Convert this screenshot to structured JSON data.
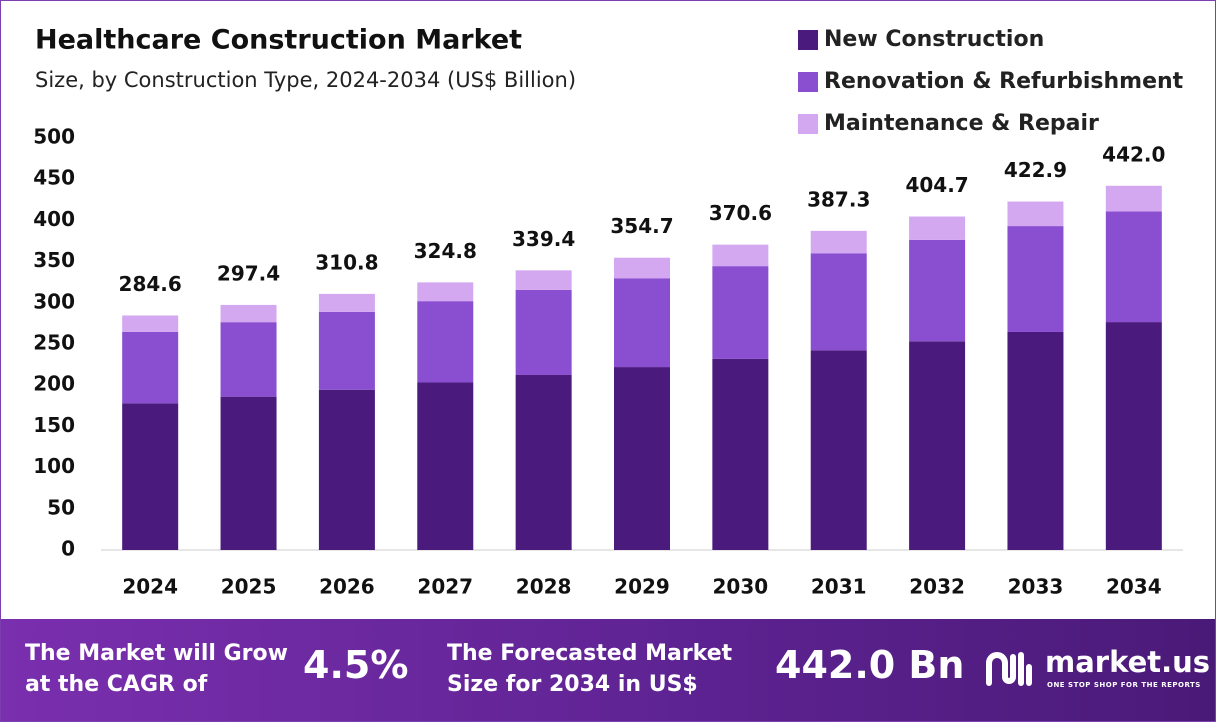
{
  "chart_data": {
    "type": "stacked-bar",
    "title": "Healthcare Construction Market",
    "subtitle": "Size, by Construction Type, 2024-2034 (US$ Billion)",
    "categories": [
      "2024",
      "2025",
      "2026",
      "2027",
      "2028",
      "2029",
      "2030",
      "2031",
      "2032",
      "2033",
      "2034"
    ],
    "series": [
      {
        "name": "New Construction",
        "color": "#4b1a7d",
        "values": [
          178.1,
          186.1,
          194.5,
          203.3,
          212.4,
          222.0,
          231.9,
          242.4,
          253.3,
          264.6,
          276.6
        ]
      },
      {
        "name": "Renovation & Refurbishment",
        "color": "#8a4fd0",
        "values": [
          86.5,
          90.4,
          94.5,
          98.7,
          103.2,
          107.8,
          112.6,
          117.7,
          123.0,
          128.5,
          134.3
        ]
      },
      {
        "name": "Maintenance & Repair",
        "color": "#d4a8f0",
        "values": [
          20.0,
          20.9,
          21.8,
          22.8,
          23.8,
          24.9,
          26.1,
          27.2,
          28.4,
          29.8,
          31.1
        ]
      }
    ],
    "totals": {
      "values": [
        284.6,
        297.4,
        310.8,
        324.8,
        339.4,
        354.7,
        370.6,
        387.3,
        404.7,
        422.9,
        442.0
      ],
      "value_labels": [
        "284.6",
        "297.4",
        "310.8",
        "324.8",
        "339.4",
        "354.7",
        "370.6",
        "387.3",
        "404.7",
        "422.9",
        "442.0"
      ]
    },
    "ylim": [
      0,
      500
    ],
    "yticks": [
      0,
      50,
      100,
      150,
      200,
      250,
      300,
      350,
      400,
      450,
      500
    ],
    "grid": false,
    "legend": "top-right"
  },
  "footer": {
    "cagr_text": "The Market will Grow at the CAGR of",
    "cagr_value": "4.5%",
    "forecast_text": "The Forecasted Market Size for 2034 in US$",
    "forecast_value": "442.0 Bn",
    "brand": "market.us",
    "tagline": "ONE STOP SHOP FOR THE REPORTS"
  }
}
